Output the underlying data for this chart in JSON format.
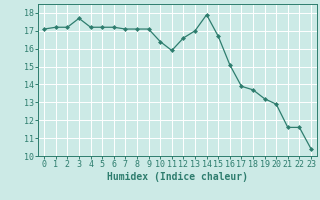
{
  "x": [
    0,
    1,
    2,
    3,
    4,
    5,
    6,
    7,
    8,
    9,
    10,
    11,
    12,
    13,
    14,
    15,
    16,
    17,
    18,
    19,
    20,
    21,
    22,
    23
  ],
  "y": [
    17.1,
    17.2,
    17.2,
    17.7,
    17.2,
    17.2,
    17.2,
    17.1,
    17.1,
    17.1,
    16.4,
    15.9,
    16.6,
    17.0,
    17.9,
    16.7,
    15.1,
    13.9,
    13.7,
    13.2,
    12.9,
    11.6,
    11.6,
    10.4
  ],
  "line_color": "#2e7d6e",
  "marker": "D",
  "marker_size": 2.0,
  "bg_color": "#cceae6",
  "grid_color": "#ffffff",
  "xlabel": "Humidex (Indice chaleur)",
  "xlabel_fontsize": 7,
  "tick_fontsize": 6,
  "ylim": [
    10,
    18.5
  ],
  "xlim": [
    -0.5,
    23.5
  ],
  "yticks": [
    10,
    11,
    12,
    13,
    14,
    15,
    16,
    17,
    18
  ],
  "xticks": [
    0,
    1,
    2,
    3,
    4,
    5,
    6,
    7,
    8,
    9,
    10,
    11,
    12,
    13,
    14,
    15,
    16,
    17,
    18,
    19,
    20,
    21,
    22,
    23
  ]
}
